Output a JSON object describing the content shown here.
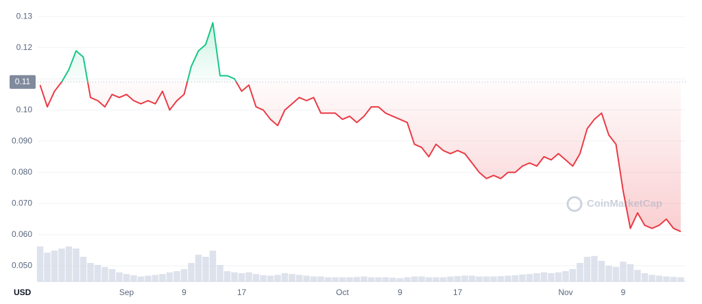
{
  "chart_data": {
    "type": "line",
    "x_unit_label": "USD",
    "watermark": "CoinMarketCap",
    "categories": [
      null,
      null,
      null,
      null,
      null,
      null,
      null,
      null,
      null,
      null,
      null,
      null,
      "Sep",
      null,
      null,
      null,
      null,
      null,
      null,
      null,
      "9",
      null,
      null,
      null,
      null,
      null,
      null,
      null,
      "17",
      null,
      null,
      null,
      null,
      null,
      null,
      null,
      null,
      null,
      null,
      null,
      null,
      null,
      "Oct",
      null,
      null,
      null,
      null,
      null,
      null,
      null,
      "9",
      null,
      null,
      null,
      null,
      null,
      null,
      null,
      "17",
      null,
      null,
      null,
      null,
      null,
      null,
      null,
      null,
      null,
      null,
      null,
      null,
      null,
      null,
      "Nov",
      null,
      null,
      null,
      null,
      null,
      null,
      null,
      "9",
      null,
      null,
      null,
      null,
      null,
      null,
      null,
      null
    ],
    "values": [
      0.108,
      0.101,
      0.106,
      0.109,
      0.113,
      0.119,
      0.117,
      0.104,
      0.103,
      0.101,
      0.105,
      0.104,
      0.105,
      0.103,
      0.102,
      0.103,
      0.102,
      0.106,
      0.1,
      0.103,
      0.105,
      0.114,
      0.119,
      0.121,
      0.128,
      0.111,
      0.111,
      0.11,
      0.106,
      0.108,
      0.101,
      0.1,
      0.097,
      0.095,
      0.1,
      0.102,
      0.104,
      0.103,
      0.104,
      0.099,
      0.099,
      0.099,
      0.097,
      0.098,
      0.096,
      0.098,
      0.101,
      0.101,
      0.099,
      0.098,
      0.097,
      0.096,
      0.089,
      0.088,
      0.085,
      0.089,
      0.087,
      0.086,
      0.087,
      0.086,
      0.083,
      0.08,
      0.078,
      0.079,
      0.078,
      0.08,
      0.08,
      0.082,
      0.083,
      0.082,
      0.085,
      0.084,
      0.086,
      0.084,
      0.082,
      0.086,
      0.094,
      0.097,
      0.099,
      0.092,
      0.089,
      0.074,
      0.062,
      0.067,
      0.063,
      0.062,
      0.063,
      0.065,
      0.062,
      0.061
    ],
    "up_color": "#16c784",
    "down_color": "#ea3943",
    "baseline": {
      "value": 0.109,
      "label": "0.11"
    },
    "ylim": [
      0.045,
      0.132
    ],
    "yticks": [
      0.13,
      0.12,
      0.11,
      {
        "value": 0.1,
        "label": "0.10"
      },
      {
        "value": 0.09,
        "label": "0.090"
      },
      {
        "value": 0.08,
        "label": "0.080"
      },
      {
        "value": 0.07,
        "label": "0.070"
      },
      {
        "value": 0.06,
        "label": "0.060"
      },
      {
        "value": 0.05,
        "label": "0.050"
      }
    ],
    "grid": true,
    "volume": {
      "color": "#cfd6e4",
      "ylim": [
        0,
        100
      ],
      "values": [
        85,
        70,
        75,
        80,
        85,
        80,
        60,
        45,
        40,
        35,
        30,
        22,
        18,
        15,
        12,
        14,
        16,
        18,
        22,
        25,
        30,
        45,
        65,
        60,
        75,
        40,
        25,
        22,
        20,
        22,
        18,
        15,
        14,
        16,
        20,
        18,
        16,
        14,
        12,
        12,
        10,
        10,
        10,
        10,
        11,
        12,
        10,
        10,
        10,
        9,
        8,
        10,
        12,
        12,
        10,
        10,
        10,
        12,
        13,
        14,
        14,
        12,
        12,
        12,
        13,
        14,
        15,
        17,
        18,
        20,
        22,
        20,
        22,
        25,
        30,
        45,
        60,
        62,
        50,
        38,
        35,
        48,
        42,
        28,
        20,
        16,
        14,
        12,
        11,
        10
      ]
    }
  }
}
